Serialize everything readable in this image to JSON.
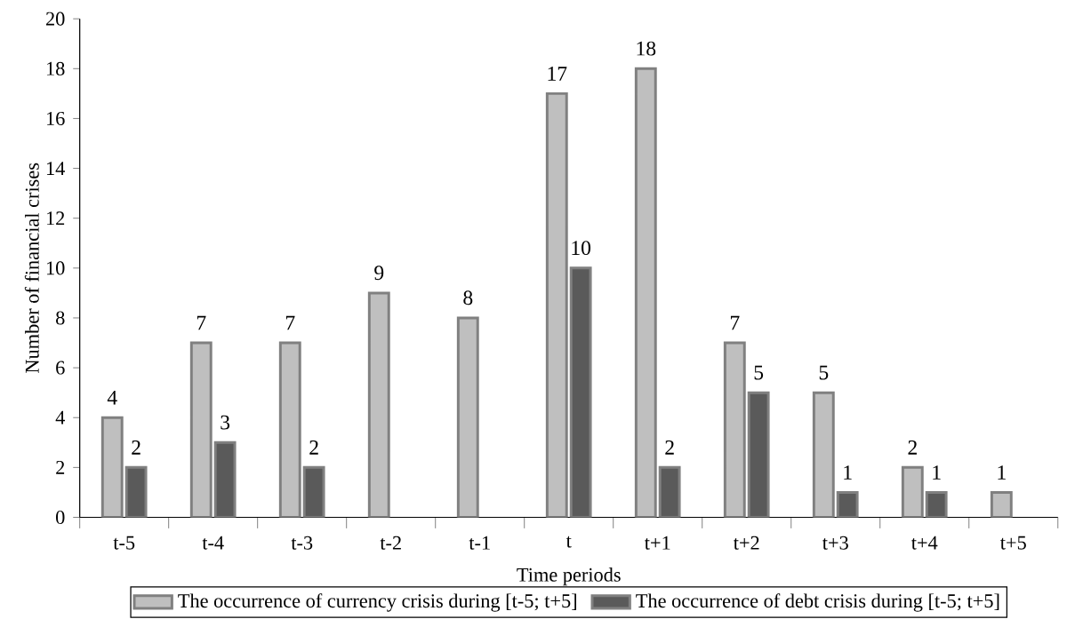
{
  "chart_data": {
    "type": "bar",
    "xlabel": "Time periods",
    "ylabel": "Number of financial crises",
    "categories": [
      "t-5",
      "t-4",
      "t-3",
      "t-2",
      "t-1",
      "t",
      "t+1",
      "t+2",
      "t+3",
      "t+4",
      "t+5"
    ],
    "series": [
      {
        "name": "The occurrence of currency crisis during [t-5; t+5]",
        "color": "#bfbfbf",
        "values": [
          4,
          7,
          7,
          9,
          8,
          17,
          18,
          7,
          5,
          2,
          1
        ]
      },
      {
        "name": "The occurrence of debt crisis during [t-5; t+5]",
        "color": "#5a5a5a",
        "values": [
          2,
          3,
          2,
          null,
          null,
          10,
          2,
          5,
          1,
          1,
          null
        ]
      }
    ],
    "ylim": [
      0,
      20
    ],
    "yticks": [
      0,
      2,
      4,
      6,
      8,
      10,
      12,
      14,
      16,
      18,
      20
    ],
    "data_labels": true,
    "legend": "bottom",
    "grid": false
  }
}
